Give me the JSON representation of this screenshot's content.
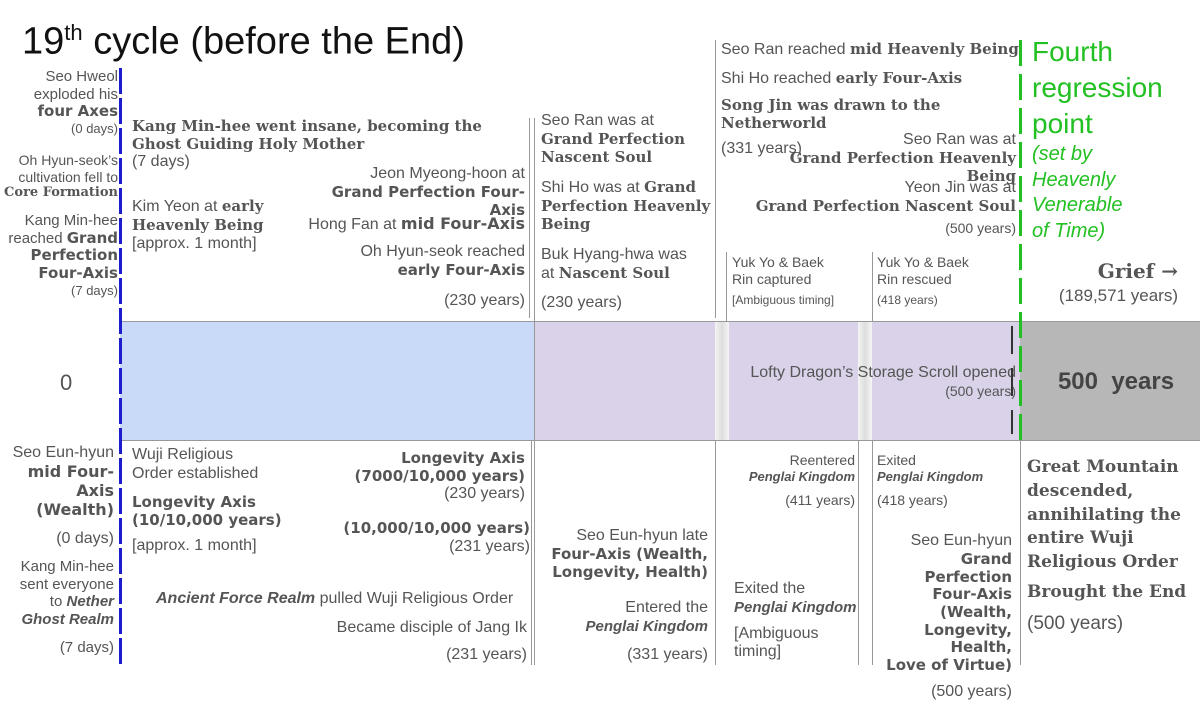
{
  "title": {
    "prefix": "19",
    "sup": "th",
    "rest": " cycle (before the End)"
  },
  "colors": {
    "blue_band": "#c9daf8",
    "purple_band": "#d9d2e9",
    "gray_band": "#b7b7b7",
    "marker_blue": "#1c1ccc",
    "marker_green": "#22c022"
  },
  "band": {
    "zero": "0",
    "end_label": "500  years",
    "scroll_event": "Lofty Dragon’s Storage Scroll opened",
    "scroll_time": "(500 years)"
  },
  "col0_top": {
    "e1_l1": "Seo Hweol",
    "e1_l2": "exploded his",
    "e1_l3": "four Axes",
    "e1_t": "(0 days)",
    "e2_l1": "Oh Hyun-seok’s",
    "e2_l2": "cultivation fell to",
    "e2_l3": "Core Formation",
    "e3_l1": "Kang Min-hee",
    "e3_l2": "reached",
    "e3_l2b": "Grand",
    "e3_l3": "Perfection",
    "e3_l4": "Four-Axis",
    "e3_t": "(7 days)"
  },
  "col0_bot": {
    "e1_l1": "Seo Eun-hyun",
    "e1_l2": "mid Four-Axis",
    "e1_l3": "(Wealth)",
    "e1_t": "(0 days)",
    "e2_l1": "Kang Min-hee",
    "e2_l2": "sent everyone",
    "e2_l3a": "to ",
    "e2_l3b": "Nether",
    "e2_l4": "Ghost Realm",
    "e2_t": "(7 days)"
  },
  "col1_top": {
    "e1_l1": "Kang Min-hee went insane, becoming the",
    "e1_l2": "Ghost Guiding Holy Mother",
    "e1_t": "(7 days)",
    "e2_a": "Kim Yeon at ",
    "e2_b": "early",
    "e2_l2": "Heavenly Being",
    "e2_t": "[approx. 1 month]",
    "e3_l1": "Jeon Myeong-hoon at",
    "e3_l2": "Grand Perfection Four-Axis",
    "e4_a": "Hong Fan at ",
    "e4_b": "mid Four-Axis",
    "e5_l1": "Oh Hyun-seok reached",
    "e5_l2": "early Four-Axis",
    "e5_t": "(230 years)"
  },
  "col1_bot": {
    "e1_l1": "Wuji Religious",
    "e1_l2": "Order established",
    "e2_l1": "Longevity Axis",
    "e2_l2": "(10/10,000 years)",
    "e2_t": "[approx. 1 month]",
    "e3_l1": "Longevity Axis",
    "e3_l2": "(7000/10,000 years)",
    "e3_t": "(230 years)",
    "e4_l1": "(10,000/10,000 years)",
    "e4_t": "(231 years)",
    "e5_a": "Ancient Force Realm",
    "e5_b": " pulled Wuji Religious Order",
    "e6": "Became disciple of Jang Ik",
    "e6_t": "(231 years)"
  },
  "col2_top": {
    "e1_l1": "Seo Ran was at",
    "e1_l2": "Grand Perfection",
    "e1_l3": "Nascent Soul",
    "e2_a": "Shi Ho was at ",
    "e2_b": "Grand",
    "e2_l2": "Perfection Heavenly",
    "e2_l3": "Being",
    "e3_l1": "Buk Hyang-hwa was",
    "e3_a": "at ",
    "e3_b": "Nascent Soul",
    "e3_t": "(230 years)"
  },
  "col2_bot": {
    "e1_l1": "Seo Eun-hyun late",
    "e1_l2": "Four-Axis (Wealth,",
    "e1_l3": "Longevity, Health)",
    "e2_l1": "Entered the",
    "e2_l2": "Penglai Kingdom",
    "e2_t": "(331 years)"
  },
  "col3_top": {
    "e1_a": "Seo Ran reached ",
    "e1_b": "mid Heavenly Being",
    "e2_a": "Shi Ho reached ",
    "e2_b": "early Four-Axis",
    "e3": "Song Jin was drawn to the Netherworld",
    "e3_t": "(331 years)",
    "e4_l1": "Seo Ran was at",
    "e4_l2": "Grand Perfection Heavenly Being",
    "e5_l1": "Yeon Jin was at",
    "e5_l2": "Grand Perfection Nascent Soul",
    "e5_t": "(500 years)",
    "e6_l1": "Yuk Yo & Baek",
    "e6_l2": "Rin captured",
    "e6_t": "[Ambiguous timing]",
    "e7_l1": "Yuk Yo & Baek",
    "e7_l2": "Rin rescued",
    "e7_t": "(418 years)"
  },
  "col3_bot": {
    "e1_l1": "Reentered",
    "e1_l2": "Penglai Kingdom",
    "e1_t": "(411 years)",
    "e2_l1": "Exited",
    "e2_l2": "Penglai Kingdom",
    "e2_t": "(418 years)",
    "e3_l1": "Exited the",
    "e3_l2": "Penglai Kingdom",
    "e3_t1": "[Ambiguous",
    "e3_t2": "timing]",
    "e4_l1": "Seo Eun-hyun",
    "e4_l2": "Grand Perfection",
    "e4_l3": "Four-Axis (Wealth,",
    "e4_l4": "Longevity, Health,",
    "e4_l5": "Love of Virtue)",
    "e4_t": "(500 years)"
  },
  "col4": {
    "g1": "Fourth",
    "g2": "regression",
    "g3": "point",
    "g4": "(set by",
    "g5": "Heavenly",
    "g6": "Venerable",
    "g7": "of Time)",
    "grief": "Grief →",
    "grief_t": "(189,571 years)",
    "end_l1": "Great Mountain",
    "end_l2": "descended,",
    "end_l3": "annihilating the",
    "end_l4": "entire Wuji",
    "end_l5": "Religious Order",
    "end_l6": "Brought the End",
    "end_t": "(500 years)"
  }
}
